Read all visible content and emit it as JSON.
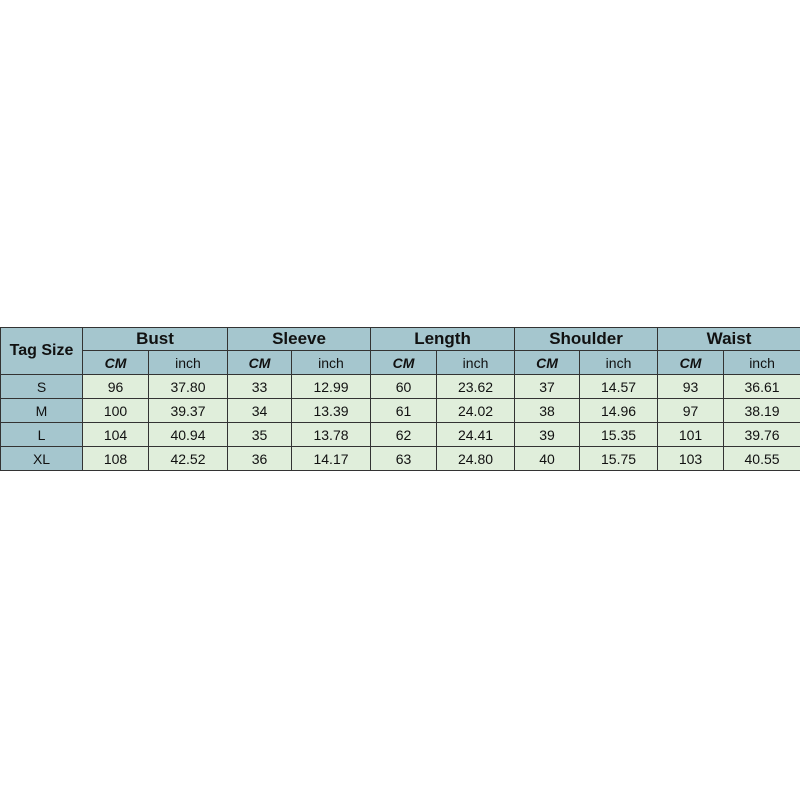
{
  "table": {
    "tag_header": "Tag Size",
    "groups": [
      "Bust",
      "Sleeve",
      "Length",
      "Shoulder",
      "Waist"
    ],
    "units": [
      "CM",
      "inch"
    ],
    "rows": [
      {
        "size": "S",
        "values": [
          "96",
          "37.80",
          "33",
          "12.99",
          "60",
          "23.62",
          "37",
          "14.57",
          "93",
          "36.61"
        ]
      },
      {
        "size": "M",
        "values": [
          "100",
          "39.37",
          "34",
          "13.39",
          "61",
          "24.02",
          "38",
          "14.96",
          "97",
          "38.19"
        ]
      },
      {
        "size": "L",
        "values": [
          "104",
          "40.94",
          "35",
          "13.78",
          "62",
          "24.41",
          "39",
          "15.35",
          "101",
          "39.76"
        ]
      },
      {
        "size": "XL",
        "values": [
          "108",
          "42.52",
          "36",
          "14.17",
          "63",
          "24.80",
          "40",
          "15.75",
          "103",
          "40.55"
        ]
      }
    ]
  },
  "colors": {
    "header": "#a5c6ce",
    "cell": "#e0eedb",
    "border": "#333333"
  }
}
